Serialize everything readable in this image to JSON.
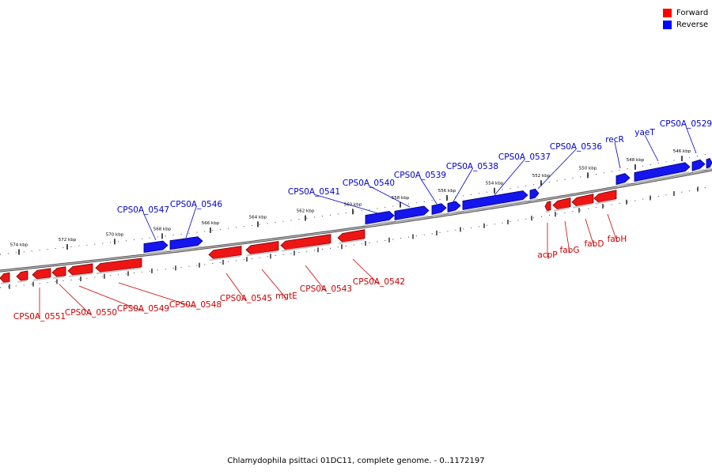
{
  "legend": {
    "forward_label": "Forward",
    "reverse_label": "Reverse",
    "forward_color": "#ff0000",
    "reverse_color": "#0000ff"
  },
  "caption": "Chlamydophila psittaci 01DC11, complete genome. - 0..1172197",
  "ruler_labels": [
    "574 kbp",
    "572 kbp",
    "570 kbp",
    "568 kbp",
    "566 kbp",
    "564 kbp",
    "562 kbp",
    "560 kbp",
    "558 kbp",
    "556 kbp",
    "554 kbp",
    "552 kbp",
    "550 kbp",
    "548 kbp",
    "546 kbp"
  ],
  "genes": {
    "reverse": [
      "CPS0A_0547",
      "CPS0A_0546",
      "CPS0A_0541",
      "CPS0A_0540",
      "CPS0A_0539",
      "CPS0A_0538",
      "CPS0A_0537",
      "CPS0A_0536",
      "recR",
      "yaeT",
      "CPS0A_0529"
    ],
    "forward": [
      "CPS0A_0551",
      "CPS0A_0550",
      "CPS0A_0549",
      "CPS0A_0548",
      "CPS0A_0545",
      "mgtE",
      "CPS0A_0543",
      "CPS0A_0542",
      "acpP",
      "fabG",
      "fabD",
      "fabH"
    ]
  }
}
